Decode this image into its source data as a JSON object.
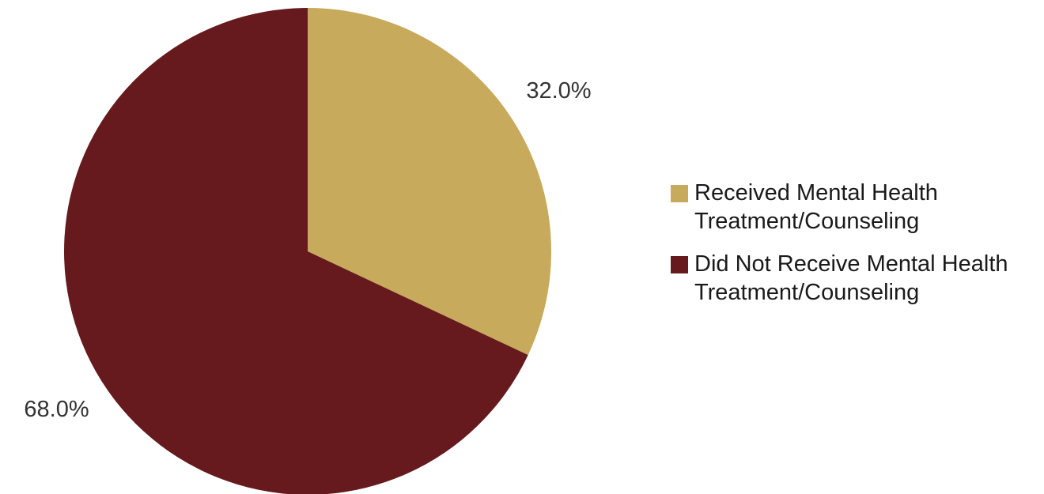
{
  "chart_data": {
    "type": "pie",
    "slices": [
      {
        "label": "Received Mental Health Treatment/Counseling",
        "value": 32.0,
        "value_label": "32.0%",
        "color": "#C7AA5C"
      },
      {
        "label": "Did Not Receive Mental Health Treatment/Counseling",
        "value": 68.0,
        "value_label": "68.0%",
        "color": "#661A1D"
      }
    ],
    "start_angle": "12 o'clock",
    "direction": "clockwise",
    "legend_position": "right"
  }
}
